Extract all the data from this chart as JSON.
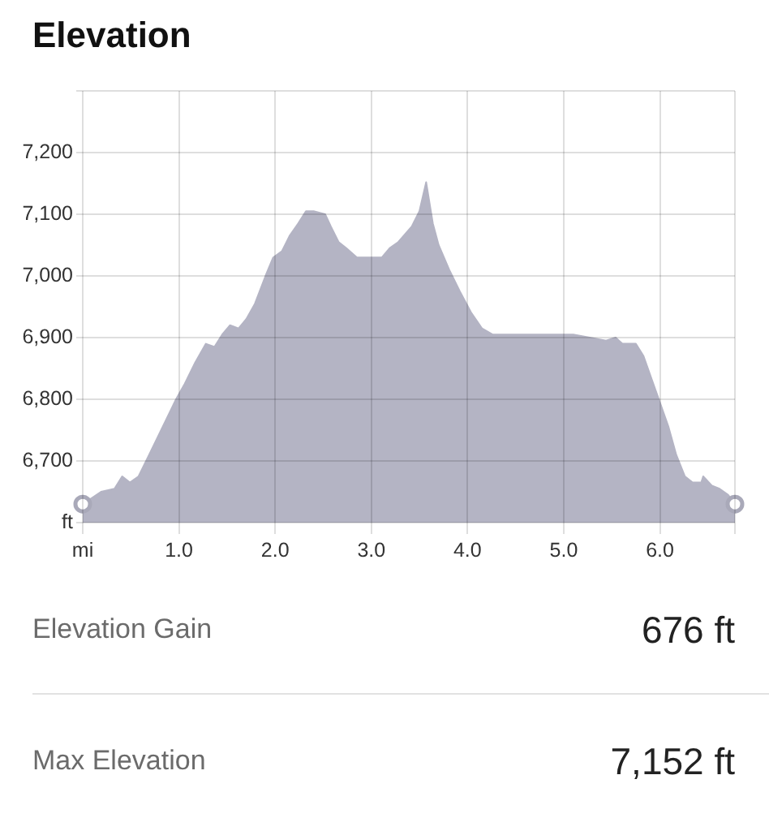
{
  "chart_data": {
    "type": "area",
    "title": "Elevation",
    "x": [
      0,
      0.19,
      0.33,
      0.41,
      0.49,
      0.58,
      0.69,
      0.83,
      0.97,
      1.06,
      1.17,
      1.28,
      1.37,
      1.45,
      1.53,
      1.62,
      1.7,
      1.79,
      1.9,
      1.98,
      2.07,
      2.15,
      2.24,
      2.32,
      2.4,
      2.52,
      2.58,
      2.66,
      2.74,
      2.85,
      3.02,
      3.11,
      3.19,
      3.28,
      3.42,
      3.5,
      3.57,
      3.64,
      3.7,
      3.81,
      3.92,
      4.04,
      4.15,
      4.26,
      4.34,
      4.43,
      4.51,
      4.65,
      4.88,
      5.1,
      5.27,
      5.44,
      5.54,
      5.61,
      5.75,
      5.83,
      5.92,
      6.0,
      6.09,
      6.17,
      6.26,
      6.34,
      6.43,
      6.45,
      6.54,
      6.62,
      6.71,
      6.78
    ],
    "series": [
      {
        "type": "area",
        "color": "#b4b4c4",
        "values": [
          6630,
          6650,
          6655,
          6675,
          6665,
          6675,
          6710,
          6755,
          6800,
          6825,
          6860,
          6890,
          6885,
          6905,
          6920,
          6915,
          6930,
          6955,
          7000,
          7030,
          7040,
          7065,
          7085,
          7105,
          7105,
          7100,
          7080,
          7055,
          7045,
          7030,
          7030,
          7030,
          7045,
          7055,
          7080,
          7105,
          7152,
          7085,
          7050,
          7010,
          6975,
          6940,
          6915,
          6905,
          6905,
          6905,
          6905,
          6905,
          6905,
          6905,
          6900,
          6895,
          6900,
          6890,
          6890,
          6870,
          6830,
          6795,
          6755,
          6710,
          6675,
          6665,
          6665,
          6675,
          6660,
          6655,
          6645,
          6630
        ]
      },
      {
        "type": "scatter",
        "color": "#a9a9b9",
        "marker": "circle",
        "x": [
          0,
          6.78
        ],
        "values": [
          6630,
          6630
        ]
      }
    ],
    "xlim": [
      0,
      6.78
    ],
    "xticks": [
      {
        "value": 0,
        "label": "mi"
      },
      {
        "value": 1,
        "label": "1.0"
      },
      {
        "value": 2,
        "label": "2.0"
      },
      {
        "value": 3,
        "label": "3.0"
      },
      {
        "value": 4,
        "label": "4.0"
      },
      {
        "value": 5,
        "label": "5.0"
      },
      {
        "value": 6,
        "label": "6.0"
      },
      {
        "value": 6.78,
        "label": null
      }
    ],
    "ylim": [
      6600,
      7300
    ],
    "yticks": [
      {
        "value": 6600,
        "label": "ft"
      },
      {
        "value": 6700,
        "label": "6,700"
      },
      {
        "value": 6800,
        "label": "6,800"
      },
      {
        "value": 6900,
        "label": "6,900"
      },
      {
        "value": 7000,
        "label": "7,000"
      },
      {
        "value": 7100,
        "label": "7,100"
      },
      {
        "value": 7200,
        "label": "7,200"
      },
      {
        "value": 7300,
        "label": null
      }
    ],
    "grid": true,
    "legend": false,
    "annotations": [
      "Elevation Gain",
      "676 ft",
      "Max Elevation",
      "7,152 ft"
    ]
  }
}
